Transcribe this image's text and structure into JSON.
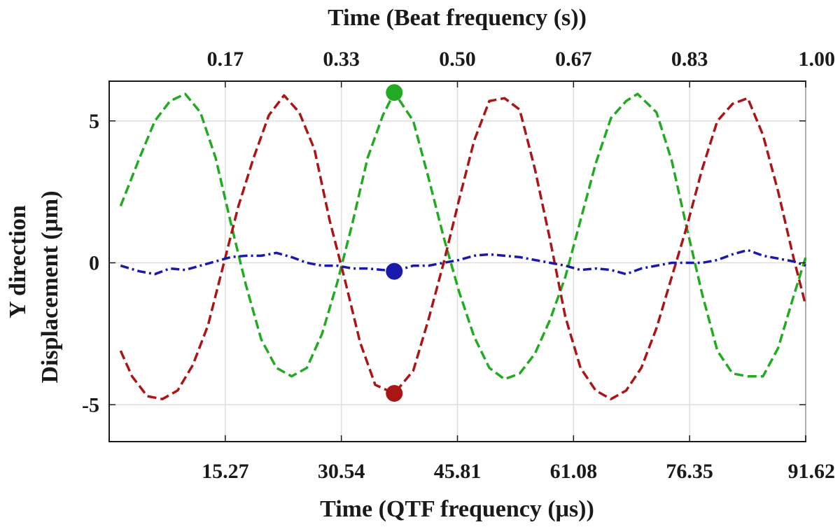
{
  "chart_data": {
    "type": "line",
    "title": "",
    "xlabel": "Time (QTF frequency (μs))",
    "xlabel_top": "Time (Beat frequency (s))",
    "ylabel_line1": "Y direction",
    "ylabel_line2": "Displacement (μm)",
    "xlim": [
      0,
      91.62
    ],
    "ylim": [
      -6.3,
      6.4
    ],
    "x_ticks": [
      "15.27",
      "30.54",
      "45.81",
      "61.08",
      "76.35",
      "91.62"
    ],
    "x_tick_values": [
      15.27,
      30.54,
      45.81,
      61.08,
      76.35,
      91.62
    ],
    "x_top_ticks": [
      "0.17",
      "0.33",
      "0.50",
      "0.67",
      "0.83",
      "1.00"
    ],
    "y_ticks": [
      "5",
      "0",
      "-5"
    ],
    "y_tick_values": [
      5,
      0,
      -5
    ],
    "grid": true,
    "series": [
      {
        "color": "#22aa22",
        "style": "dashed",
        "x": [
          1.5,
          4,
          6,
          8,
          10,
          12,
          14,
          16,
          18,
          20,
          22,
          24,
          26,
          28,
          30,
          32,
          34,
          36,
          37.5,
          40,
          42,
          44,
          46,
          48,
          50,
          52,
          54,
          56,
          58,
          60,
          62,
          64,
          66,
          68,
          69.5,
          72,
          74,
          76,
          78,
          80,
          82,
          84,
          86,
          88,
          90,
          91.62
        ],
        "y": [
          2.0,
          3.7,
          5.0,
          5.7,
          5.95,
          5.3,
          3.7,
          1.4,
          -0.8,
          -2.7,
          -3.7,
          -4.0,
          -3.7,
          -2.5,
          -0.7,
          1.4,
          3.7,
          5.2,
          6.0,
          5.0,
          3.0,
          0.9,
          -1.0,
          -2.6,
          -3.7,
          -4.1,
          -3.9,
          -3.2,
          -2.0,
          -0.5,
          1.5,
          3.5,
          5.1,
          5.7,
          5.95,
          5.3,
          3.6,
          1.2,
          -1.1,
          -3.1,
          -3.9,
          -4.0,
          -4.0,
          -3.0,
          -1.2,
          0.2
        ]
      },
      {
        "color": "#aa1515",
        "style": "dashed",
        "x": [
          1.5,
          3,
          5,
          7,
          9,
          11,
          13,
          15,
          17,
          19,
          21,
          23,
          25,
          27,
          29,
          31,
          33,
          35,
          37.5,
          40,
          42,
          44,
          46,
          48,
          50,
          52,
          54,
          56,
          58,
          60,
          62,
          64,
          66,
          68,
          70,
          72,
          74,
          76,
          78,
          80,
          82,
          84,
          86,
          88,
          90,
          91.62
        ],
        "y": [
          -3.1,
          -4.0,
          -4.7,
          -4.8,
          -4.5,
          -3.6,
          -2.2,
          -0.1,
          2.0,
          3.7,
          5.2,
          5.9,
          5.3,
          4.0,
          1.5,
          -0.6,
          -2.8,
          -4.3,
          -4.6,
          -3.8,
          -2.0,
          0.0,
          2.2,
          4.3,
          5.7,
          5.8,
          5.4,
          3.3,
          0.8,
          -1.9,
          -3.7,
          -4.5,
          -4.8,
          -4.5,
          -3.7,
          -2.3,
          -0.5,
          1.3,
          3.3,
          5.0,
          5.6,
          5.8,
          4.5,
          2.5,
          0.2,
          -1.5
        ]
      },
      {
        "color": "#1a1aaa",
        "style": "dashdot",
        "x": [
          1.5,
          4,
          6,
          8,
          10,
          12,
          14,
          16,
          18,
          20,
          22,
          24,
          26,
          28,
          30,
          32,
          34,
          36,
          37.5,
          40,
          42,
          44,
          46,
          48,
          50,
          52,
          54,
          56,
          58,
          60,
          62,
          64,
          66,
          68,
          70,
          72,
          74,
          76,
          78,
          80,
          82,
          84,
          86,
          88,
          90,
          91.62
        ],
        "y": [
          -0.1,
          -0.3,
          -0.4,
          -0.2,
          -0.25,
          -0.1,
          0.05,
          0.2,
          0.25,
          0.25,
          0.35,
          0.2,
          0.0,
          -0.1,
          -0.1,
          -0.2,
          -0.2,
          -0.25,
          -0.3,
          -0.1,
          -0.1,
          0.0,
          0.1,
          0.25,
          0.3,
          0.25,
          0.2,
          0.1,
          0.0,
          -0.1,
          -0.25,
          -0.2,
          -0.25,
          -0.4,
          -0.2,
          -0.1,
          0.0,
          0.0,
          0.0,
          0.1,
          0.3,
          0.45,
          0.25,
          0.15,
          0.05,
          -0.1
        ]
      }
    ],
    "markers": [
      {
        "x": 37.5,
        "y": 6.0,
        "color": "#22aa22"
      },
      {
        "x": 37.5,
        "y": -0.3,
        "color": "#1a1aaa"
      },
      {
        "x": 37.5,
        "y": -4.6,
        "color": "#aa1515"
      }
    ]
  }
}
